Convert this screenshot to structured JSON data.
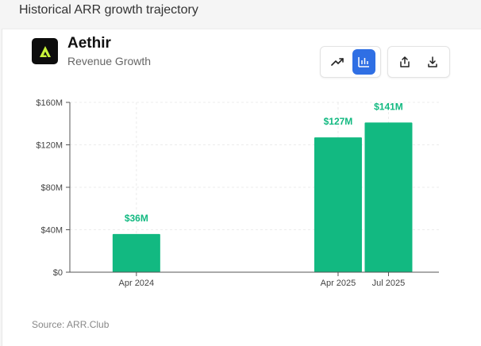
{
  "page": {
    "heading": "Historical ARR growth trajectory"
  },
  "company": {
    "name": "Aethir",
    "subtitle": "Revenue Growth"
  },
  "toolbar": {
    "line_icon": "trending-up-icon",
    "bar_icon": "bar-chart-icon",
    "share_icon": "share-icon",
    "download_icon": "download-icon",
    "active_color": "#2f6fe4"
  },
  "footer": {
    "source": "Source: ARR.Club"
  },
  "chart_data": {
    "type": "bar",
    "title": "",
    "xlabel": "",
    "ylabel": "",
    "ylim": [
      0,
      160
    ],
    "yticks": [
      0,
      40,
      80,
      120,
      160
    ],
    "ytick_labels": [
      "$0",
      "$40M",
      "$80M",
      "$120M",
      "$160M"
    ],
    "x_range": [
      2023.92,
      2025.75
    ],
    "bar_color": "#12b981",
    "grid": true,
    "bars": [
      {
        "label": "Apr 2024",
        "x": 2024.25,
        "value": 36,
        "value_label": "$36M"
      },
      {
        "label": "Apr 2025",
        "x": 2025.25,
        "value": 127,
        "value_label": "$127M"
      },
      {
        "label": "Jul 2025",
        "x": 2025.5,
        "value": 141,
        "value_label": "$141M"
      }
    ]
  }
}
